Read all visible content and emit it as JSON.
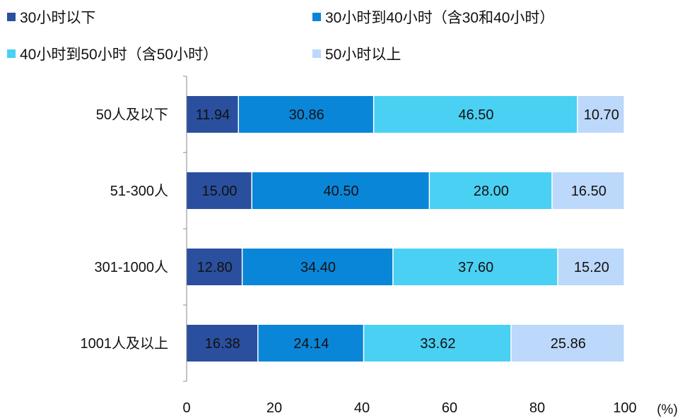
{
  "chart_data": {
    "type": "bar",
    "orientation": "horizontal",
    "stacked": true,
    "categories": [
      "50人及以下",
      "51-300人",
      "301-1000人",
      "1001人及以上"
    ],
    "series": [
      {
        "name": "30小时以下",
        "color": "#2a4f9e",
        "values": [
          11.94,
          15.0,
          12.8,
          16.38
        ],
        "labels": [
          "11.94",
          "15.00",
          "12.80",
          "16.38"
        ]
      },
      {
        "name": "30小时到40小时（含30和40小时）",
        "color": "#0a86d8",
        "values": [
          30.86,
          40.5,
          34.4,
          24.14
        ],
        "labels": [
          "30.86",
          "40.50",
          "34.40",
          "24.14"
        ]
      },
      {
        "name": "40小时到50小时（含50小时）",
        "color": "#4ad0f2",
        "values": [
          46.5,
          28.0,
          37.6,
          33.62
        ],
        "labels": [
          "46.50",
          "28.00",
          "37.60",
          "33.62"
        ]
      },
      {
        "name": "50小时以上",
        "color": "#bcd8fa",
        "values": [
          10.7,
          16.5,
          15.2,
          25.86
        ],
        "labels": [
          "10.70",
          "16.50",
          "15.20",
          "25.86"
        ]
      }
    ],
    "xlim": [
      0,
      100
    ],
    "xticks": [
      "0",
      "20",
      "40",
      "60",
      "80",
      "100"
    ],
    "unit_label": "(%)",
    "grid": false,
    "legend_position": "top"
  }
}
